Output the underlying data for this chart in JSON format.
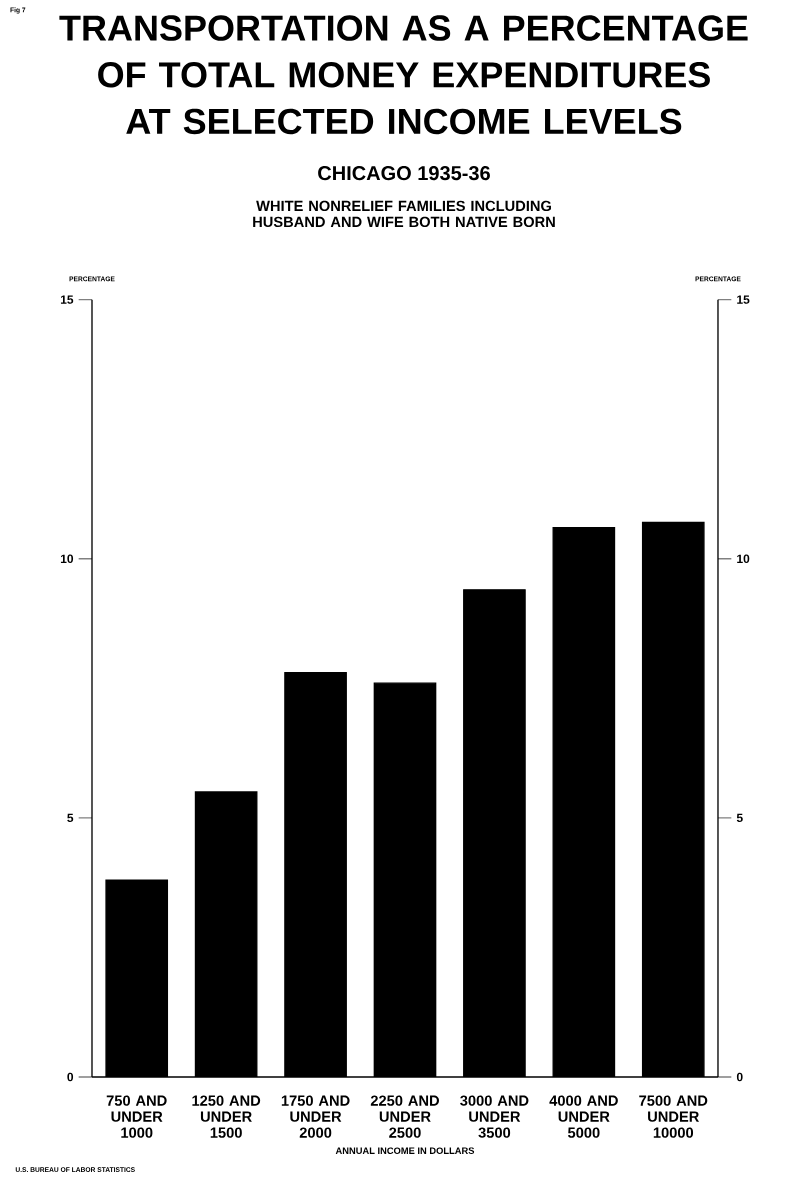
{
  "chart_data": {
    "type": "bar",
    "title": "TRANSPORTATION AS A PERCENTAGE OF TOTAL MONEY EXPENDITURES AT SELECTED INCOME LEVELS",
    "subtitle": "CHICAGO 1935-36",
    "annotations": [
      "WHITE NONRELIEF FAMILIES INCLUDING HUSBAND AND WIFE BOTH NATIVE BORN",
      "Fig 7",
      "U.S. BUREAU OF LABOR STATISTICS"
    ],
    "xlabel": "ANNUAL INCOME IN DOLLARS",
    "ylabel": "PERCENTAGE",
    "y2label": "PERCENTAGE",
    "categories": [
      "750 AND UNDER 1000",
      "1250 AND UNDER 1500",
      "1750 AND UNDER 2000",
      "2250 AND UNDER 2500",
      "3000 AND UNDER 3500",
      "4000 AND UNDER 5000",
      "7500 AND UNDER 10000"
    ],
    "values": [
      3.8,
      5.5,
      7.8,
      7.6,
      9.4,
      10.6,
      10.7
    ],
    "color": "#000000",
    "ylim": [
      0,
      15
    ],
    "yticks": [
      0,
      5,
      10,
      15
    ],
    "y2lim": [
      0,
      15
    ],
    "y2ticks": [
      0,
      5,
      10,
      15
    ],
    "grid": false
  }
}
